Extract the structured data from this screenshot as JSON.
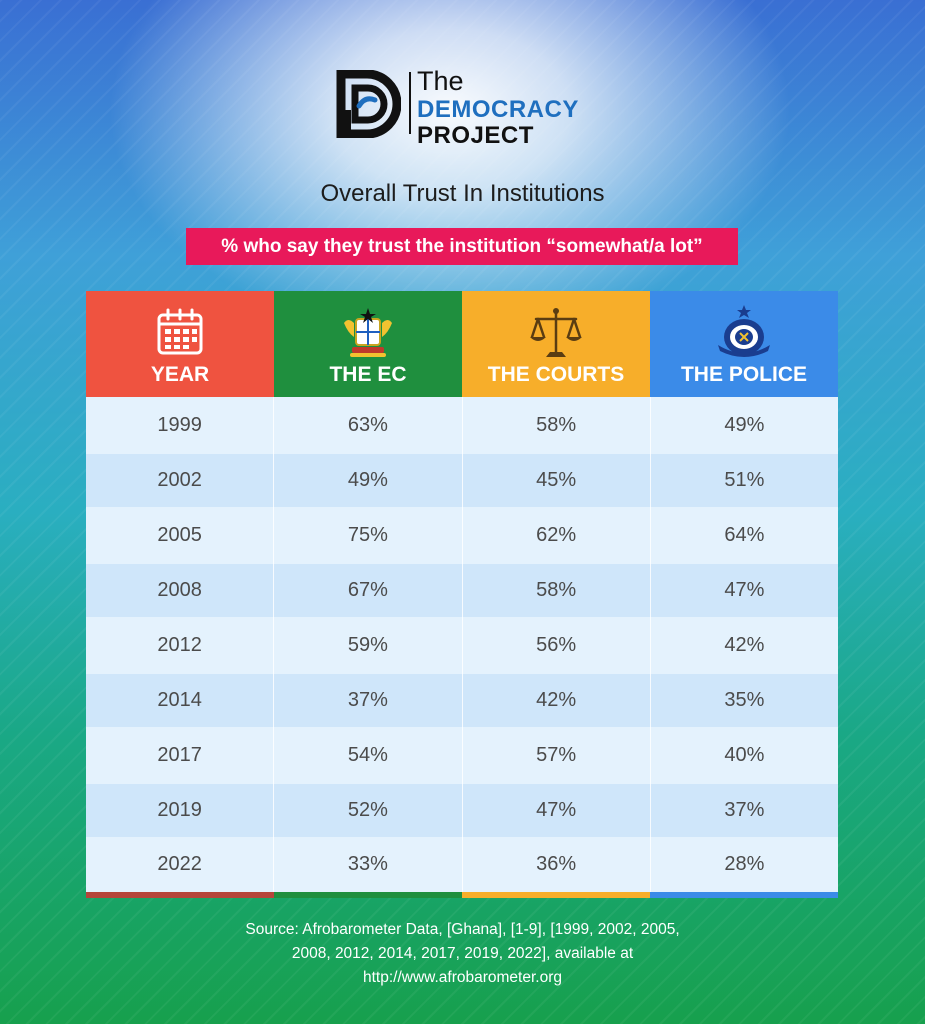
{
  "logo": {
    "the": "The",
    "democracy": "DEMOCRACY",
    "project": "PROJECT"
  },
  "title": "Overall Trust In Institutions",
  "subtitle": "% who say they trust the institution “somewhat/a lot”",
  "colors": {
    "year": "#ef5340",
    "ec": "#1f8f3e",
    "courts": "#f7ae2a",
    "police": "#3b8be8",
    "subtitle_bg": "#e8195a"
  },
  "icons": {
    "year": "calendar-icon",
    "ec": "ghana-coat-of-arms-icon",
    "courts": "scales-of-justice-icon",
    "police": "ghana-police-badge-icon"
  },
  "chart_data": {
    "type": "table",
    "title": "Overall Trust In Institutions",
    "subtitle": "% who say they trust the institution “somewhat/a lot”",
    "columns": [
      "YEAR",
      "THE EC",
      "THE COURTS",
      "THE POLICE"
    ],
    "rows": [
      [
        "1999",
        "63%",
        "58%",
        "49%"
      ],
      [
        "2002",
        "49%",
        "45%",
        "51%"
      ],
      [
        "2005",
        "75%",
        "62%",
        "64%"
      ],
      [
        "2008",
        "67%",
        "58%",
        "47%"
      ],
      [
        "2012",
        "59%",
        "56%",
        "42%"
      ],
      [
        "2014",
        "37%",
        "42%",
        "35%"
      ],
      [
        "2017",
        "54%",
        "57%",
        "40%"
      ],
      [
        "2019",
        "52%",
        "47%",
        "37%"
      ],
      [
        "2022",
        "33%",
        "36%",
        "28%"
      ]
    ]
  },
  "source": {
    "line1": "Source: Afrobarometer Data, [Ghana], [1-9], [1999, 2002, 2005,",
    "line2": "2008, 2012, 2014, 2017, 2019, 2022], available at",
    "line3": "http://www.afrobarometer.org"
  }
}
